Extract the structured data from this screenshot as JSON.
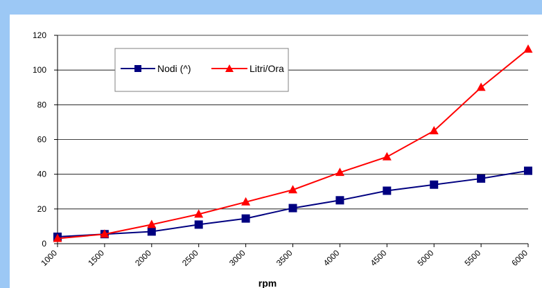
{
  "chart_data": {
    "type": "line",
    "title": "",
    "xlabel": "rpm",
    "ylabel": "",
    "x": [
      1000,
      1500,
      2000,
      2500,
      3000,
      3500,
      4000,
      4500,
      5000,
      5500,
      6000
    ],
    "categories": [
      "1000",
      "1500",
      "2000",
      "2500",
      "3000",
      "3500",
      "4000",
      "4500",
      "5000",
      "5500",
      "6000"
    ],
    "ylim": [
      0,
      120
    ],
    "yticks": [
      0,
      20,
      40,
      60,
      80,
      100,
      120
    ],
    "grid": true,
    "legend": "top-left",
    "series": [
      {
        "name": "Nodi (^)",
        "color": "#000080",
        "marker": "square",
        "values": [
          4,
          5.5,
          7,
          11,
          14.5,
          20.5,
          25,
          30.5,
          34,
          37.5,
          42
        ]
      },
      {
        "name": "Litri/Ora",
        "color": "#ff0000",
        "marker": "triangle",
        "values": [
          3,
          5.5,
          11,
          17,
          24,
          31,
          41,
          50,
          65,
          90,
          112
        ]
      }
    ]
  }
}
